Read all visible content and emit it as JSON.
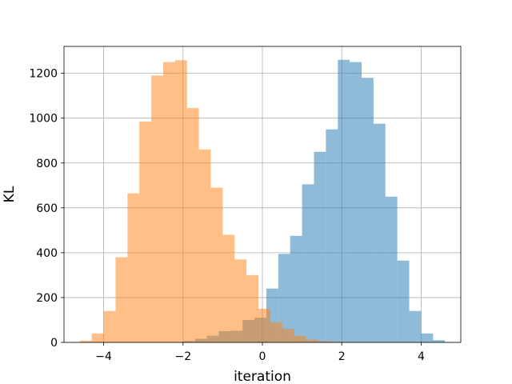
{
  "chart_data": {
    "type": "histogram",
    "title": "",
    "xlabel": "iteration",
    "ylabel": "KL",
    "xlim": [
      -5.0,
      5.0
    ],
    "ylim": [
      0,
      1320
    ],
    "grid": true,
    "legend": "none",
    "xticks": [
      -4,
      -2,
      0,
      2,
      4
    ],
    "xtick_labels": [
      "−4",
      "−2",
      "0",
      "2",
      "4"
    ],
    "yticks": [
      0,
      200,
      400,
      600,
      800,
      1000,
      1200
    ],
    "ytick_labels": [
      "0",
      "200",
      "400",
      "600",
      "800",
      "1000",
      "1200"
    ],
    "series": [
      {
        "color": "#1f77b4",
        "opacity": 0.5,
        "bin_edges": [
          -2.3,
          -2.0,
          -1.7,
          -1.4,
          -1.1,
          -0.8,
          -0.5,
          -0.2,
          0.1,
          0.4,
          0.7,
          1.0,
          1.3,
          1.6,
          1.9,
          2.2,
          2.5,
          2.8,
          3.1,
          3.4,
          3.7,
          4.0,
          4.3,
          4.6
        ],
        "counts": [
          2,
          6,
          16,
          30,
          50,
          52,
          100,
          110,
          240,
          395,
          475,
          705,
          850,
          950,
          1260,
          1250,
          1180,
          975,
          650,
          365,
          140,
          40,
          10
        ]
      },
      {
        "color": "#ff7f0e",
        "opacity": 0.5,
        "bin_edges": [
          -4.6,
          -4.3,
          -4.0,
          -3.7,
          -3.4,
          -3.1,
          -2.8,
          -2.5,
          -2.2,
          -1.9,
          -1.6,
          -1.3,
          -1.0,
          -0.7,
          -0.4,
          -0.1,
          0.2,
          0.5,
          0.8,
          1.1,
          1.4,
          1.7,
          2.0
        ],
        "counts": [
          8,
          40,
          140,
          380,
          665,
          985,
          1190,
          1250,
          1258,
          1045,
          860,
          690,
          480,
          370,
          300,
          150,
          90,
          60,
          30,
          12,
          5,
          3
        ]
      }
    ]
  }
}
